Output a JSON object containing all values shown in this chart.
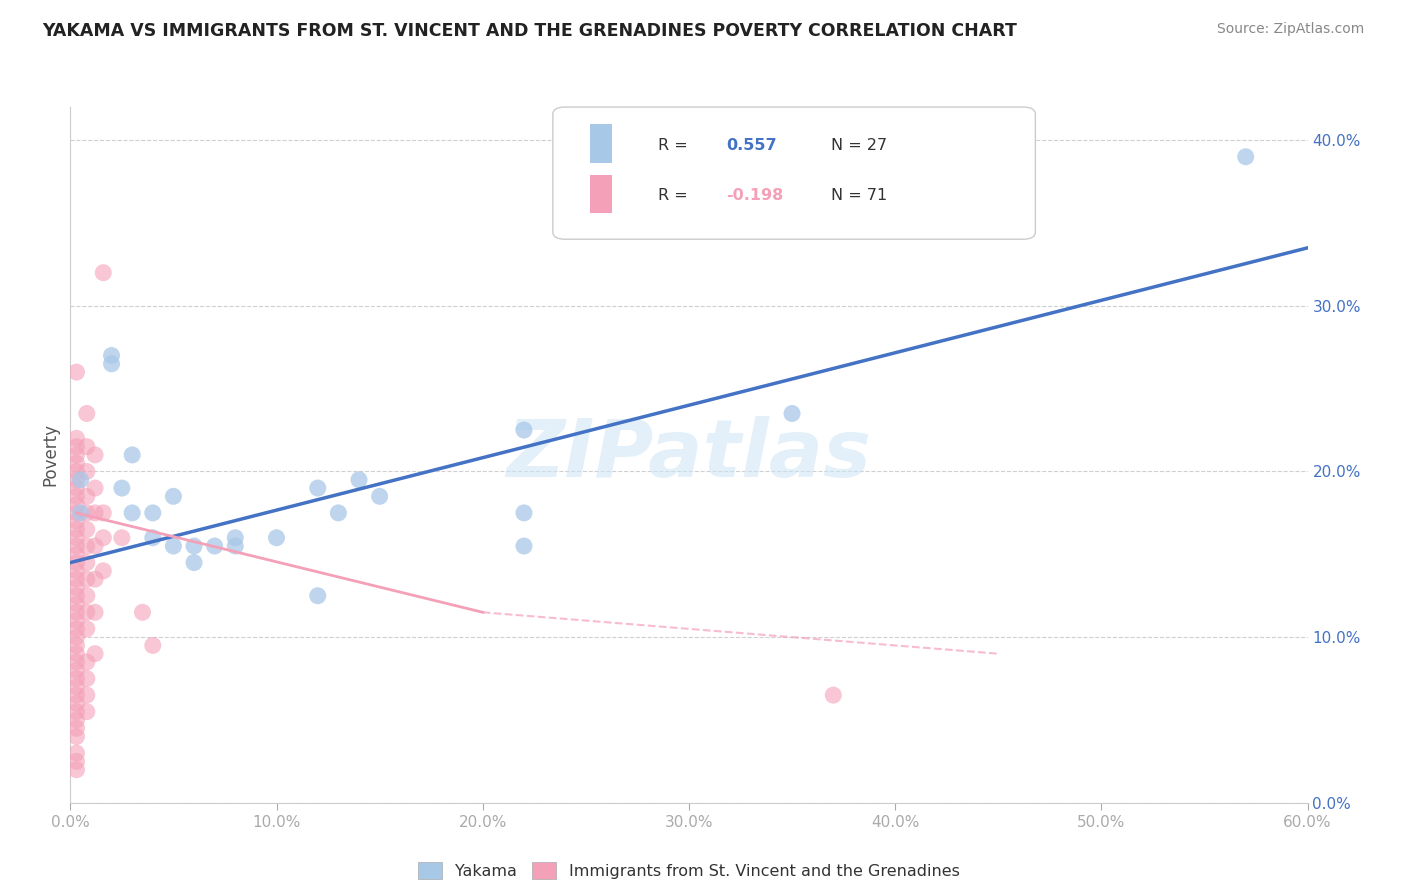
{
  "title": "YAKAMA VS IMMIGRANTS FROM ST. VINCENT AND THE GRENADINES POVERTY CORRELATION CHART",
  "source": "Source: ZipAtlas.com",
  "ylabel": "Poverty",
  "watermark": "ZIPatlas",
  "legend_blue_label": "Yakama",
  "legend_pink_label": "Immigrants from St. Vincent and the Grenadines",
  "blue_color": "#a8c8e8",
  "pink_color": "#f4a0b8",
  "blue_line_color": "#4472c4",
  "blue_r_color": "#4472c4",
  "pink_r_color": "#f4a0b8",
  "ytick_color": "#4472c4",
  "xtick_color": "#aaaaaa",
  "grid_color": "#d0d0d0",
  "xlim": [
    0.0,
    0.6
  ],
  "ylim": [
    0.0,
    0.42
  ],
  "xticks": [
    0.0,
    0.1,
    0.2,
    0.3,
    0.4,
    0.5,
    0.6
  ],
  "yticks": [
    0.0,
    0.1,
    0.2,
    0.3,
    0.4
  ],
  "blue_points": [
    [
      0.005,
      0.195
    ],
    [
      0.005,
      0.175
    ],
    [
      0.02,
      0.27
    ],
    [
      0.02,
      0.265
    ],
    [
      0.025,
      0.19
    ],
    [
      0.03,
      0.21
    ],
    [
      0.03,
      0.175
    ],
    [
      0.04,
      0.175
    ],
    [
      0.04,
      0.16
    ],
    [
      0.05,
      0.185
    ],
    [
      0.05,
      0.155
    ],
    [
      0.06,
      0.155
    ],
    [
      0.06,
      0.145
    ],
    [
      0.07,
      0.155
    ],
    [
      0.08,
      0.155
    ],
    [
      0.08,
      0.16
    ],
    [
      0.1,
      0.16
    ],
    [
      0.12,
      0.125
    ],
    [
      0.12,
      0.19
    ],
    [
      0.13,
      0.175
    ],
    [
      0.14,
      0.195
    ],
    [
      0.15,
      0.185
    ],
    [
      0.22,
      0.225
    ],
    [
      0.22,
      0.175
    ],
    [
      0.22,
      0.155
    ],
    [
      0.35,
      0.235
    ],
    [
      0.57,
      0.39
    ]
  ],
  "pink_points": [
    [
      0.003,
      0.26
    ],
    [
      0.003,
      0.22
    ],
    [
      0.003,
      0.215
    ],
    [
      0.003,
      0.21
    ],
    [
      0.003,
      0.205
    ],
    [
      0.003,
      0.2
    ],
    [
      0.003,
      0.195
    ],
    [
      0.003,
      0.19
    ],
    [
      0.003,
      0.185
    ],
    [
      0.003,
      0.18
    ],
    [
      0.003,
      0.175
    ],
    [
      0.003,
      0.17
    ],
    [
      0.003,
      0.165
    ],
    [
      0.003,
      0.16
    ],
    [
      0.003,
      0.155
    ],
    [
      0.003,
      0.15
    ],
    [
      0.003,
      0.145
    ],
    [
      0.003,
      0.14
    ],
    [
      0.003,
      0.135
    ],
    [
      0.003,
      0.13
    ],
    [
      0.003,
      0.125
    ],
    [
      0.003,
      0.12
    ],
    [
      0.003,
      0.115
    ],
    [
      0.003,
      0.11
    ],
    [
      0.003,
      0.105
    ],
    [
      0.003,
      0.1
    ],
    [
      0.003,
      0.095
    ],
    [
      0.003,
      0.09
    ],
    [
      0.003,
      0.085
    ],
    [
      0.003,
      0.08
    ],
    [
      0.003,
      0.075
    ],
    [
      0.003,
      0.07
    ],
    [
      0.003,
      0.065
    ],
    [
      0.003,
      0.06
    ],
    [
      0.003,
      0.055
    ],
    [
      0.003,
      0.05
    ],
    [
      0.003,
      0.045
    ],
    [
      0.003,
      0.04
    ],
    [
      0.003,
      0.03
    ],
    [
      0.003,
      0.025
    ],
    [
      0.003,
      0.02
    ],
    [
      0.008,
      0.235
    ],
    [
      0.008,
      0.215
    ],
    [
      0.008,
      0.2
    ],
    [
      0.008,
      0.185
    ],
    [
      0.008,
      0.175
    ],
    [
      0.008,
      0.165
    ],
    [
      0.008,
      0.155
    ],
    [
      0.008,
      0.145
    ],
    [
      0.008,
      0.135
    ],
    [
      0.008,
      0.125
    ],
    [
      0.008,
      0.115
    ],
    [
      0.008,
      0.105
    ],
    [
      0.008,
      0.085
    ],
    [
      0.008,
      0.075
    ],
    [
      0.008,
      0.065
    ],
    [
      0.008,
      0.055
    ],
    [
      0.012,
      0.21
    ],
    [
      0.012,
      0.19
    ],
    [
      0.012,
      0.175
    ],
    [
      0.012,
      0.155
    ],
    [
      0.012,
      0.135
    ],
    [
      0.012,
      0.115
    ],
    [
      0.012,
      0.09
    ],
    [
      0.016,
      0.32
    ],
    [
      0.016,
      0.175
    ],
    [
      0.016,
      0.16
    ],
    [
      0.016,
      0.14
    ],
    [
      0.025,
      0.16
    ],
    [
      0.035,
      0.115
    ],
    [
      0.04,
      0.095
    ],
    [
      0.37,
      0.065
    ]
  ],
  "blue_line": [
    [
      0.0,
      0.145
    ],
    [
      0.6,
      0.335
    ]
  ],
  "pink_line": [
    [
      0.003,
      0.175
    ],
    [
      0.2,
      0.115
    ]
  ],
  "pink_line_ext": [
    [
      0.003,
      0.175
    ],
    [
      0.45,
      0.09
    ]
  ]
}
